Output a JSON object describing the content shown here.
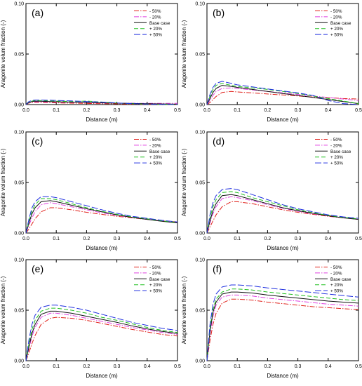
{
  "figure": {
    "series_names": [
      "- 50%",
      "- 20%",
      "Base case",
      "+ 20%",
      "+ 50%"
    ],
    "series_colors": [
      "#e0201a",
      "#e040e0",
      "#101010",
      "#20c020",
      "#2030e0"
    ],
    "series_dash": [
      "7,2,1.5,2",
      "7,2,1.5,2",
      "",
      "6,3",
      "9,3"
    ]
  },
  "chart_data": [
    {
      "type": "line",
      "panel_label": "(a)",
      "ylabel": "Aragonite volum fraction (-)",
      "xlabel": "Distance (m)",
      "xlim": [
        0,
        0.5
      ],
      "ylim": [
        0,
        0.1
      ],
      "xticks": [
        "0.0",
        "0.1",
        "0.2",
        "0.3",
        "0.4",
        "0.5"
      ],
      "yticks": [
        "0.00",
        "0.05",
        "0.10"
      ],
      "legend": "top-right",
      "x": [
        0,
        0.005,
        0.01,
        0.02,
        0.03,
        0.05,
        0.08,
        0.1,
        0.15,
        0.2,
        0.25,
        0.3,
        0.35,
        0.4,
        0.45,
        0.5
      ],
      "series": [
        {
          "name": "- 50%",
          "values": [
            0,
            0.0008,
            0.0015,
            0.002,
            0.0022,
            0.0021,
            0.0019,
            0.0017,
            0.0014,
            0.0011,
            0.0009,
            0.0007,
            0.0005,
            0.0003,
            0.0002,
            0.0001
          ]
        },
        {
          "name": "- 20%",
          "values": [
            0,
            0.001,
            0.0018,
            0.0025,
            0.0028,
            0.0027,
            0.0025,
            0.0024,
            0.0021,
            0.0018,
            0.0016,
            0.0014,
            0.0013,
            0.0012,
            0.0012,
            0.0012
          ]
        },
        {
          "name": "Base case",
          "values": [
            0,
            0.0012,
            0.002,
            0.003,
            0.0034,
            0.0033,
            0.003,
            0.0028,
            0.0024,
            0.002,
            0.0017,
            0.0014,
            0.0011,
            0.0008,
            0.0006,
            0.0004
          ]
        },
        {
          "name": "+ 20%",
          "values": [
            0,
            0.0015,
            0.0025,
            0.0035,
            0.004,
            0.004,
            0.0037,
            0.0035,
            0.003,
            0.0035,
            0.0025,
            0.0015,
            0.0008,
            0.0004,
            0.0002,
            0.0001
          ]
        },
        {
          "name": "+ 50%",
          "values": [
            0,
            0.0018,
            0.003,
            0.004,
            0.0045,
            0.0045,
            0.0043,
            0.004,
            0.0036,
            0.003,
            0.0024,
            0.0016,
            0.0009,
            0.0005,
            0.0002,
            0.0001
          ]
        }
      ]
    },
    {
      "type": "line",
      "panel_label": "(b)",
      "ylabel": "Aragonite volum fraction (-)",
      "xlabel": "Distance (m)",
      "xlim": [
        0,
        0.5
      ],
      "ylim": [
        0,
        0.1
      ],
      "xticks": [
        "0.0",
        "0.1",
        "0.2",
        "0.3",
        "0.4",
        "0.5"
      ],
      "yticks": [
        "0.00",
        "0.05",
        "0.10"
      ],
      "legend": "top-right",
      "x": [
        0,
        0.005,
        0.01,
        0.02,
        0.03,
        0.05,
        0.08,
        0.1,
        0.15,
        0.2,
        0.25,
        0.3,
        0.35,
        0.4,
        0.45,
        0.5
      ],
      "series": [
        {
          "name": "- 50%",
          "values": [
            0,
            0.001,
            0.002,
            0.005,
            0.008,
            0.012,
            0.013,
            0.0125,
            0.0115,
            0.0105,
            0.0095,
            0.0085,
            0.0075,
            0.0068,
            0.006,
            0.0055
          ]
        },
        {
          "name": "- 20%",
          "values": [
            0,
            0.002,
            0.004,
            0.009,
            0.013,
            0.016,
            0.0165,
            0.016,
            0.0145,
            0.013,
            0.0115,
            0.01,
            0.0085,
            0.007,
            0.0055,
            0.004
          ]
        },
        {
          "name": "Base case",
          "values": [
            0,
            0.003,
            0.006,
            0.012,
            0.016,
            0.019,
            0.018,
            0.017,
            0.015,
            0.013,
            0.011,
            0.009,
            0.007,
            0.005,
            0.003,
            0.001
          ]
        },
        {
          "name": "+ 20%",
          "values": [
            0,
            0.004,
            0.008,
            0.015,
            0.019,
            0.021,
            0.019,
            0.018,
            0.0165,
            0.015,
            0.013,
            0.011,
            0.0085,
            0.006,
            0.0035,
            0.001
          ]
        },
        {
          "name": "+ 50%",
          "values": [
            0,
            0.005,
            0.01,
            0.017,
            0.021,
            0.023,
            0.021,
            0.0195,
            0.0175,
            0.0155,
            0.0135,
            0.0115,
            0.009,
            0.004,
            0.001,
            0
          ]
        }
      ]
    },
    {
      "type": "line",
      "panel_label": "(c)",
      "ylabel": "Aragonite volum fraction (-)",
      "xlabel": "Distance (m)",
      "xlim": [
        0,
        0.5
      ],
      "ylim": [
        0,
        0.1
      ],
      "xticks": [
        "0.0",
        "0.1",
        "0.2",
        "0.3",
        "0.4",
        "0.5"
      ],
      "yticks": [
        "0.00",
        "0.05",
        "0.10"
      ],
      "legend": "top-right",
      "x": [
        0,
        0.005,
        0.01,
        0.02,
        0.03,
        0.05,
        0.08,
        0.1,
        0.15,
        0.2,
        0.25,
        0.3,
        0.35,
        0.4,
        0.45,
        0.5
      ],
      "series": [
        {
          "name": "- 50%",
          "values": [
            0,
            0.002,
            0.004,
            0.009,
            0.014,
            0.021,
            0.025,
            0.025,
            0.023,
            0.0205,
            0.0185,
            0.0165,
            0.015,
            0.0135,
            0.012,
            0.011
          ]
        },
        {
          "name": "- 20%",
          "values": [
            0,
            0.004,
            0.008,
            0.015,
            0.021,
            0.028,
            0.03,
            0.029,
            0.026,
            0.023,
            0.02,
            0.0175,
            0.0155,
            0.0135,
            0.012,
            0.0105
          ]
        },
        {
          "name": "Base case",
          "values": [
            0,
            0.005,
            0.01,
            0.019,
            0.025,
            0.031,
            0.032,
            0.031,
            0.0275,
            0.024,
            0.021,
            0.018,
            0.0155,
            0.0135,
            0.0115,
            0.01
          ]
        },
        {
          "name": "+ 20%",
          "values": [
            0,
            0.006,
            0.012,
            0.022,
            0.028,
            0.034,
            0.034,
            0.033,
            0.029,
            0.025,
            0.0215,
            0.0185,
            0.016,
            0.014,
            0.012,
            0.0105
          ]
        },
        {
          "name": "+ 50%",
          "values": [
            0,
            0.007,
            0.014,
            0.025,
            0.031,
            0.036,
            0.036,
            0.035,
            0.031,
            0.027,
            0.023,
            0.0195,
            0.0165,
            0.0145,
            0.0125,
            0.011
          ]
        }
      ]
    },
    {
      "type": "line",
      "panel_label": "(d)",
      "ylabel": "Aragonite volum fraction (-)",
      "xlabel": "Distance (m)",
      "xlim": [
        0,
        0.5
      ],
      "ylim": [
        0,
        0.1
      ],
      "xticks": [
        "0.0",
        "0.1",
        "0.2",
        "0.3",
        "0.4",
        "0.5"
      ],
      "yticks": [
        "0.00",
        "0.05",
        "0.10"
      ],
      "legend": "top-right",
      "x": [
        0,
        0.005,
        0.01,
        0.02,
        0.03,
        0.05,
        0.08,
        0.1,
        0.15,
        0.2,
        0.25,
        0.3,
        0.35,
        0.4,
        0.45,
        0.5
      ],
      "series": [
        {
          "name": "- 50%",
          "values": [
            0,
            0.003,
            0.006,
            0.012,
            0.018,
            0.026,
            0.031,
            0.031,
            0.029,
            0.026,
            0.023,
            0.0205,
            0.0185,
            0.0165,
            0.015,
            0.0135
          ]
        },
        {
          "name": "- 20%",
          "values": [
            0,
            0.005,
            0.01,
            0.019,
            0.026,
            0.034,
            0.036,
            0.035,
            0.032,
            0.028,
            0.0245,
            0.0215,
            0.019,
            0.017,
            0.015,
            0.0135
          ]
        },
        {
          "name": "Base case",
          "values": [
            0,
            0.006,
            0.012,
            0.022,
            0.029,
            0.037,
            0.038,
            0.037,
            0.033,
            0.029,
            0.025,
            0.022,
            0.0195,
            0.017,
            0.015,
            0.0135
          ]
        },
        {
          "name": "+ 20%",
          "values": [
            0,
            0.008,
            0.015,
            0.026,
            0.033,
            0.04,
            0.041,
            0.04,
            0.035,
            0.031,
            0.027,
            0.023,
            0.02,
            0.0175,
            0.0155,
            0.014
          ]
        },
        {
          "name": "+ 50%",
          "values": [
            0,
            0.009,
            0.018,
            0.03,
            0.037,
            0.043,
            0.044,
            0.043,
            0.038,
            0.033,
            0.028,
            0.024,
            0.021,
            0.018,
            0.016,
            0.0145
          ]
        }
      ]
    },
    {
      "type": "line",
      "panel_label": "(e)",
      "ylabel": "Aragonite volum fraction (-)",
      "xlabel": "Distance (m)",
      "xlim": [
        0,
        0.5
      ],
      "ylim": [
        0,
        0.1
      ],
      "xticks": [
        "0.0",
        "0.1",
        "0.2",
        "0.3",
        "0.4",
        "0.5"
      ],
      "yticks": [
        "0.00",
        "0.05",
        "0.10"
      ],
      "legend": "top-right",
      "x": [
        0,
        0.005,
        0.01,
        0.02,
        0.03,
        0.05,
        0.08,
        0.1,
        0.15,
        0.2,
        0.25,
        0.3,
        0.35,
        0.4,
        0.45,
        0.5
      ],
      "series": [
        {
          "name": "- 50%",
          "values": [
            0,
            0.004,
            0.008,
            0.017,
            0.025,
            0.036,
            0.042,
            0.043,
            0.042,
            0.04,
            0.037,
            0.034,
            0.031,
            0.0285,
            0.026,
            0.0245
          ]
        },
        {
          "name": "- 20%",
          "values": [
            0,
            0.006,
            0.012,
            0.024,
            0.033,
            0.043,
            0.047,
            0.047,
            0.045,
            0.042,
            0.039,
            0.036,
            0.033,
            0.0305,
            0.028,
            0.026
          ]
        },
        {
          "name": "Base case",
          "values": [
            0,
            0.007,
            0.014,
            0.027,
            0.036,
            0.046,
            0.049,
            0.049,
            0.047,
            0.044,
            0.041,
            0.038,
            0.0345,
            0.0315,
            0.029,
            0.027
          ]
        },
        {
          "name": "+ 20%",
          "values": [
            0,
            0.009,
            0.017,
            0.031,
            0.04,
            0.049,
            0.052,
            0.052,
            0.05,
            0.047,
            0.043,
            0.04,
            0.0365,
            0.033,
            0.03,
            0.028
          ]
        },
        {
          "name": "+ 50%",
          "values": [
            0,
            0.011,
            0.021,
            0.036,
            0.045,
            0.053,
            0.055,
            0.055,
            0.053,
            0.05,
            0.046,
            0.042,
            0.038,
            0.035,
            0.032,
            0.03
          ]
        }
      ]
    },
    {
      "type": "line",
      "panel_label": "(f)",
      "ylabel": "Aragonite volum fraction (-)",
      "xlabel": "Distance (m)",
      "xlim": [
        0,
        0.5
      ],
      "ylim": [
        0,
        0.1
      ],
      "xticks": [
        "0.0",
        "0.1",
        "0.2",
        "0.3",
        "0.4",
        "0.5"
      ],
      "yticks": [
        "0.00",
        "0.05",
        "0.10"
      ],
      "legend": "top-right",
      "x": [
        0,
        0.005,
        0.01,
        0.02,
        0.03,
        0.05,
        0.08,
        0.1,
        0.15,
        0.2,
        0.25,
        0.3,
        0.35,
        0.4,
        0.45,
        0.5
      ],
      "series": [
        {
          "name": "- 50%",
          "values": [
            0,
            0.01,
            0.02,
            0.036,
            0.047,
            0.057,
            0.061,
            0.061,
            0.06,
            0.058,
            0.0565,
            0.055,
            0.0535,
            0.0525,
            0.0515,
            0.0505
          ]
        },
        {
          "name": "- 20%",
          "values": [
            0,
            0.013,
            0.026,
            0.044,
            0.055,
            0.063,
            0.065,
            0.065,
            0.064,
            0.062,
            0.0605,
            0.059,
            0.0575,
            0.056,
            0.055,
            0.054
          ]
        },
        {
          "name": "Base case",
          "values": [
            0,
            0.015,
            0.029,
            0.048,
            0.058,
            0.066,
            0.068,
            0.068,
            0.067,
            0.065,
            0.0635,
            0.062,
            0.0605,
            0.059,
            0.058,
            0.057
          ]
        },
        {
          "name": "+ 20%",
          "values": [
            0,
            0.017,
            0.032,
            0.051,
            0.061,
            0.068,
            0.071,
            0.071,
            0.07,
            0.068,
            0.0665,
            0.065,
            0.0635,
            0.062,
            0.0605,
            0.0595
          ]
        },
        {
          "name": "+ 50%",
          "values": [
            0,
            0.019,
            0.036,
            0.056,
            0.066,
            0.073,
            0.075,
            0.075,
            0.074,
            0.072,
            0.0705,
            0.069,
            0.0675,
            0.066,
            0.0645,
            0.063
          ]
        }
      ]
    }
  ]
}
